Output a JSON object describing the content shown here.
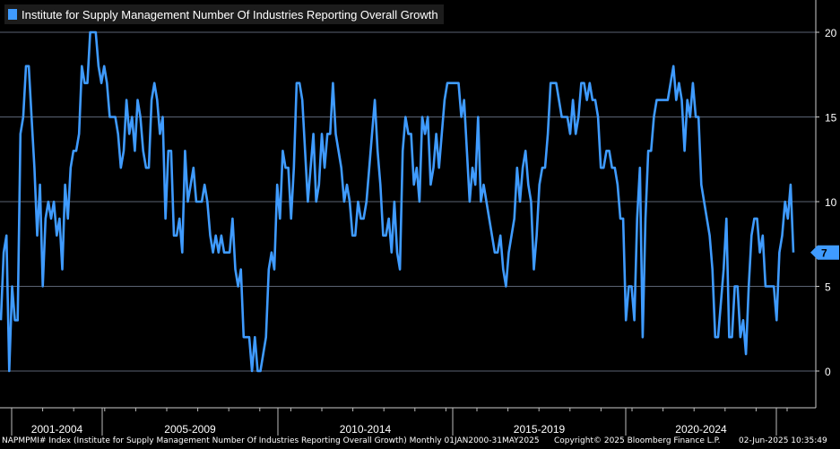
{
  "chart_data": {
    "type": "line",
    "title": "Institute for Supply Management Number Of Industries Reporting Overall Growth",
    "legend": "Institute for Supply Management Number Of Industries Reporting Overall Growth",
    "series_color": "#3f9bff",
    "y_ticks": [
      0,
      5,
      10,
      15,
      20
    ],
    "ylim": [
      -2,
      21
    ],
    "x_period_labels": [
      "2001-2004",
      "2005-2009",
      "2010-2014",
      "2015-2019",
      "2020-2024"
    ],
    "last_value": "7",
    "x_start": 2000.0,
    "x_step_years": 0.0833333,
    "values": [
      3,
      7,
      8,
      0,
      5,
      3,
      3,
      14,
      15,
      18,
      18,
      15,
      12,
      8,
      11,
      5,
      9,
      10,
      9,
      10,
      8,
      9,
      6,
      11,
      9,
      12,
      13,
      13,
      14,
      18,
      17,
      17,
      20,
      20,
      20,
      18,
      17,
      18,
      17,
      15,
      15,
      15,
      14,
      12,
      13,
      16,
      14,
      15,
      13,
      16,
      15,
      13,
      12,
      12,
      16,
      17,
      16,
      14,
      15,
      9,
      13,
      13,
      8,
      8,
      9,
      7,
      13,
      10,
      11,
      12,
      10,
      10,
      10,
      11,
      10,
      8,
      7,
      8,
      7,
      8,
      7,
      7,
      7,
      9,
      6,
      5,
      6,
      2,
      2,
      2,
      0,
      2,
      0,
      0,
      1,
      2,
      6,
      7,
      6,
      11,
      9,
      13,
      12,
      12,
      9,
      12,
      17,
      17,
      16,
      13,
      10,
      12,
      14,
      10,
      11,
      14,
      12,
      14,
      14,
      17,
      14,
      13,
      12,
      10,
      11,
      10,
      8,
      8,
      10,
      9,
      9,
      10,
      12,
      14,
      16,
      13,
      11,
      8,
      8,
      9,
      7,
      10,
      7,
      6,
      13,
      15,
      14,
      14,
      11,
      12,
      10,
      15,
      14,
      15,
      11,
      12,
      14,
      12,
      14,
      16,
      17,
      17,
      17,
      17,
      17,
      15,
      16,
      13,
      10,
      12,
      11,
      15,
      10,
      11,
      10,
      9,
      8,
      7,
      7,
      8,
      6,
      5,
      7,
      8,
      9,
      12,
      10,
      12,
      13,
      11,
      10,
      6,
      8,
      11,
      12,
      12,
      14,
      17,
      17,
      17,
      16,
      15,
      15,
      15,
      14,
      16,
      14,
      15,
      17,
      17,
      16,
      17,
      16,
      16,
      15,
      12,
      12,
      13,
      13,
      12,
      12,
      11,
      9,
      9,
      3,
      5,
      5,
      3,
      9,
      12,
      2,
      9,
      13,
      13,
      15,
      16,
      16,
      16,
      16,
      16,
      17,
      18,
      16,
      17,
      16,
      13,
      16,
      15,
      17,
      15,
      15,
      11,
      10,
      9,
      8,
      6,
      2,
      2,
      4,
      6,
      9,
      2,
      2,
      5,
      5,
      2,
      3,
      1,
      5,
      8,
      9,
      9,
      7,
      8,
      5,
      5,
      5,
      5,
      3,
      7,
      8,
      10,
      9,
      11,
      7
    ]
  },
  "footer": {
    "source": "NAPMPMI# Index (Institute for Supply Management Number Of Industries Reporting Overall Growth)  Monthly 01JAN2000-31MAY2025",
    "copyright": "Copyright© 2025 Bloomberg Finance L.P.",
    "timestamp": "02-Jun-2025 10:35:49"
  },
  "colors": {
    "background": "#000000",
    "line": "#3f9bff",
    "grid": "#5a6272",
    "badge": "#3f9bff"
  }
}
